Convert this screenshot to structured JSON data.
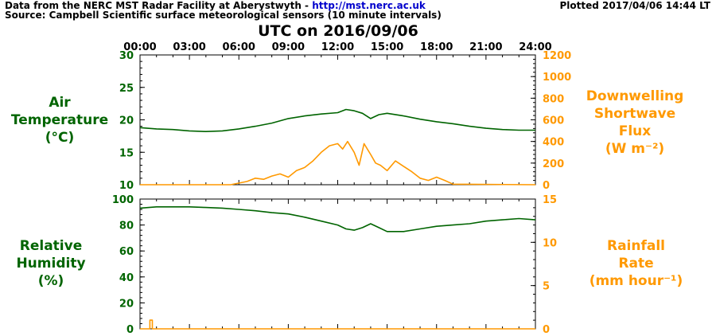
{
  "header": {
    "source_line1_prefix": "Data from the NERC MST Radar Facility at Aberystwyth - ",
    "source_link": "http://mst.nerc.ac.uk",
    "source_line2": "Source: Campbell Scientific surface meteorological sensors (10 minute intervals)",
    "plotted": "Plotted 2017/04/06 14:44 LT"
  },
  "colors": {
    "green": "#006400",
    "orange": "#ff9900",
    "link": "#0000cc"
  },
  "chart_data": [
    {
      "type": "line",
      "title": "UTC on 2016/09/06",
      "x_ticks": [
        "00:00",
        "03:00",
        "06:00",
        "09:00",
        "12:00",
        "15:00",
        "18:00",
        "21:00",
        "24:00"
      ],
      "xlim": [
        0,
        24
      ],
      "y_left": {
        "label": [
          "Air",
          "Temperature",
          "(°C)"
        ],
        "ylim": [
          10,
          30
        ],
        "ticks": [
          10,
          15,
          20,
          25,
          30
        ]
      },
      "y_right": {
        "label": [
          "Downwelling",
          "Shortwave",
          "Flux",
          "(W m⁻²)"
        ],
        "ylim": [
          0,
          1200
        ],
        "ticks": [
          0,
          200,
          400,
          600,
          800,
          1000,
          1200
        ]
      },
      "series": [
        {
          "name": "Air Temperature",
          "axis": "left",
          "color": "#006400",
          "x": [
            0,
            1,
            2,
            3,
            4,
            5,
            6,
            7,
            8,
            9,
            10,
            11,
            12,
            12.5,
            13,
            13.5,
            14,
            14.5,
            15,
            16,
            17,
            18,
            19,
            20,
            21,
            22,
            23,
            24
          ],
          "y": [
            18.8,
            18.6,
            18.5,
            18.3,
            18.2,
            18.3,
            18.6,
            19,
            19.5,
            20.2,
            20.6,
            20.9,
            21.1,
            21.6,
            21.4,
            21.0,
            20.2,
            20.8,
            21.0,
            20.6,
            20.1,
            19.7,
            19.4,
            19.0,
            18.7,
            18.5,
            18.4,
            18.4
          ]
        },
        {
          "name": "Downwelling Shortwave Flux",
          "axis": "right",
          "color": "#ff9900",
          "x": [
            0,
            3,
            5.5,
            6.5,
            7,
            7.5,
            8,
            8.5,
            9,
            9.5,
            10,
            10.5,
            11,
            11.5,
            12,
            12.3,
            12.6,
            13,
            13.3,
            13.6,
            14,
            14.3,
            14.6,
            15,
            15.5,
            16,
            16.5,
            17,
            17.5,
            18,
            18.5,
            19,
            24
          ],
          "y": [
            0,
            0,
            0,
            30,
            60,
            50,
            80,
            100,
            70,
            130,
            160,
            220,
            300,
            360,
            380,
            330,
            400,
            300,
            180,
            380,
            280,
            200,
            180,
            130,
            220,
            170,
            120,
            60,
            40,
            70,
            40,
            5,
            0
          ]
        }
      ]
    },
    {
      "type": "line",
      "xlim": [
        0,
        24
      ],
      "y_left": {
        "label": [
          "Relative",
          "Humidity",
          "(%)"
        ],
        "ylim": [
          0,
          100
        ],
        "ticks": [
          0,
          20,
          40,
          60,
          80,
          100
        ]
      },
      "y_right": {
        "label": [
          "Rainfall",
          "Rate",
          "(mm hour⁻¹)"
        ],
        "ylim": [
          0,
          15
        ],
        "ticks": [
          0,
          5,
          10,
          15
        ]
      },
      "series": [
        {
          "name": "Relative Humidity",
          "axis": "left",
          "color": "#006400",
          "x": [
            0,
            1,
            2,
            3,
            4,
            5,
            6,
            7,
            8,
            9,
            10,
            11,
            12,
            12.5,
            13,
            13.5,
            14,
            14.5,
            15,
            16,
            17,
            18,
            19,
            20,
            21,
            22,
            23,
            24
          ],
          "y": [
            93,
            94,
            94,
            94,
            93.5,
            93,
            92,
            91,
            89.5,
            88.5,
            86,
            83,
            80,
            77,
            76,
            78,
            81,
            78,
            75,
            75,
            77,
            79,
            80,
            81,
            83,
            84,
            85,
            84
          ]
        },
        {
          "name": "Rainfall Rate",
          "axis": "right",
          "color": "#ff9900",
          "x": [
            0,
            0.6,
            0.6,
            0.75,
            0.75,
            24
          ],
          "y": [
            0,
            0,
            1,
            1,
            0,
            0
          ]
        }
      ]
    }
  ]
}
